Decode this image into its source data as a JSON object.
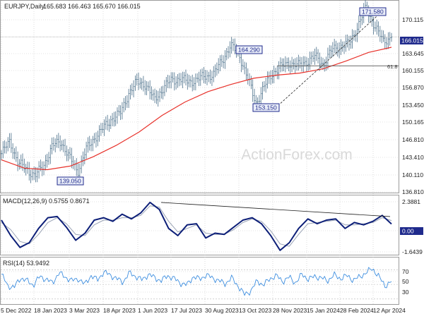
{
  "header": {
    "symbol_label": "EURJPY,Daily",
    "ohlc_text": "165.683 166.463 165.670 166.015"
  },
  "watermark": "ActionForex.com",
  "price_panel": {
    "y_ticks": [
      "170.115",
      "166.015",
      "163.645",
      "160.155",
      "156.870",
      "153.450",
      "150.165",
      "146.810",
      "143.410",
      "140.110",
      "136.810"
    ],
    "current_price": "166.015",
    "fib_label": "61.8",
    "annotations": [
      "171.580",
      "164.290",
      "153.150",
      "139.050"
    ]
  },
  "macd_panel": {
    "title": "MACD(12,26,9) 0.5755 0.8671",
    "y_ticks": [
      "2.3881",
      "0.00",
      "-1.6439"
    ],
    "current_value_label": "0.00"
  },
  "rsi_panel": {
    "title": "RSI(14) 53.9492",
    "y_ticks": [
      "70",
      "50",
      "30"
    ]
  },
  "x_axis_labels": [
    "5 Dec 2022",
    "18 Jan 2023",
    "3 Mar 2023",
    "18 Apr 2023",
    "1 Jun 2023",
    "17 Jul 2023",
    "30 Aug 2023",
    "13 Oct 2023",
    "28 Nov 2023",
    "15 Jan 2024",
    "28 Feb 2024",
    "12 Apr 2024"
  ],
  "colors": {
    "background": "#ffffff",
    "candle": "#4a6f8a",
    "moving_average": "#e8312a",
    "macd_line": "#0d1f78",
    "signal_line": "#9aa3b5",
    "rsi_line": "#3f8fe0",
    "grid": "#c8c8c8",
    "label_box_border": "#1f2a8c",
    "label_box_bg": "#e9edf8",
    "price_box": "#1f2a8c"
  },
  "chart_data": [
    {
      "type": "candlestick",
      "title": "EURJPY,Daily",
      "x_dates": [
        "5 Dec 2022",
        "18 Jan 2023",
        "3 Mar 2023",
        "18 Apr 2023",
        "1 Jun 2023",
        "17 Jul 2023",
        "30 Aug 2023",
        "13 Oct 2023",
        "28 Nov 2023",
        "15 Jan 2024",
        "28 Feb 2024",
        "12 Apr 2024"
      ],
      "close_path": [
        [
          "5 Dec 2022",
          143.4
        ],
        [
          "Dec 2022",
          145.8
        ],
        [
          "Dec 2022",
          141.5
        ],
        [
          "Jan 2023",
          140.4
        ],
        [
          "Jan 2023",
          139.05
        ],
        [
          "Feb 2023",
          141.3
        ],
        [
          "Feb 2023",
          144.8
        ],
        [
          "Mar 2023",
          145.9
        ],
        [
          "Mar 2023",
          142.6
        ],
        [
          "Mar 2023",
          140.0
        ],
        [
          "Apr 2023",
          144.2
        ],
        [
          "Apr 2023",
          146.5
        ],
        [
          "May 2023",
          148.3
        ],
        [
          "May 2023",
          150.2
        ],
        [
          "May 2023",
          151.1
        ],
        [
          "Jun 2023",
          155.1
        ],
        [
          "Jun 2023",
          157.3
        ],
        [
          "Jul 2023",
          156.8
        ],
        [
          "Jul 2023",
          153.8
        ],
        [
          "Aug 2023",
          155.9
        ],
        [
          "Aug 2023",
          157.6
        ],
        [
          "Sep 2023",
          157.9
        ],
        [
          "Sep 2023",
          157.3
        ],
        [
          "Oct 2023",
          157.7
        ],
        [
          "Oct 2023",
          158.4
        ],
        [
          "Oct 2023",
          158.7
        ],
        [
          "Nov 2023",
          161.4
        ],
        [
          "Nov 2023",
          164.29
        ],
        [
          "Nov 2023",
          162.8
        ],
        [
          "Dec 2023",
          158.2
        ],
        [
          "Dec 2023",
          153.15
        ],
        [
          "Dec 2023",
          156.4
        ],
        [
          "Jan 2024",
          159.1
        ],
        [
          "Jan 2024",
          160.2
        ],
        [
          "Jan 2024",
          161.0
        ],
        [
          "Feb 2024",
          160.4
        ],
        [
          "Feb 2024",
          161.3
        ],
        [
          "Mar 2024",
          162.2
        ],
        [
          "Mar 2024",
          160.7
        ],
        [
          "Mar 2024",
          163.6
        ],
        [
          "Apr 2024",
          164.2
        ],
        [
          "Apr 2024",
          164.6
        ],
        [
          "Apr 2024",
          168.0
        ],
        [
          "Apr 2024",
          171.58
        ],
        [
          "Apr 2024",
          168.2
        ],
        [
          "Apr 2024",
          165.1
        ],
        [
          "Apr 2024",
          166.015
        ]
      ],
      "moving_average": [
        [
          "5 Dec 2022",
          142.2
        ],
        [
          "Jan 2023",
          140.6
        ],
        [
          "Feb 2023",
          140.3
        ],
        [
          "Mar 2023",
          141.0
        ],
        [
          "Apr 2023",
          142.8
        ],
        [
          "May 2023",
          145.0
        ],
        [
          "Jun 2023",
          147.6
        ],
        [
          "Jul 2023",
          150.8
        ],
        [
          "Aug 2023",
          153.4
        ],
        [
          "Sep 2023",
          155.4
        ],
        [
          "Oct 2023",
          156.8
        ],
        [
          "Nov 2023",
          158.0
        ],
        [
          "Dec 2023",
          158.6
        ],
        [
          "Jan 2024",
          159.0
        ],
        [
          "Feb 2024",
          159.8
        ],
        [
          "Mar 2024",
          161.3
        ],
        [
          "Apr 2024",
          163.0
        ],
        [
          "Apr 2024",
          164.0
        ]
      ],
      "y_range": [
        136.0,
        172.6
      ],
      "levels": {
        "retracement_61_8": 160.4,
        "last": 166.015
      },
      "annotations": [
        {
          "text": "171.580",
          "value": 171.58
        },
        {
          "text": "164.290",
          "value": 164.29
        },
        {
          "text": "153.150",
          "value": 153.15
        },
        {
          "text": "139.050",
          "value": 139.05
        }
      ],
      "trendline": {
        "from": [
          "Nov 2023",
          153.15
        ],
        "to": [
          "Apr 2024",
          171.58
        ],
        "style": "dashed"
      }
    },
    {
      "type": "line",
      "title": "MACD(12,26,9) 0.5755 0.8671",
      "values_macd": [
        0.9,
        -0.4,
        -1.4,
        -1.0,
        0.2,
        1.1,
        1.2,
        0.3,
        -0.8,
        -0.2,
        0.9,
        1.1,
        0.8,
        1.4,
        1.0,
        1.5,
        2.3881,
        1.8,
        0.2,
        -0.4,
        0.5,
        0.6,
        -0.6,
        -0.2,
        -0.3,
        0.3,
        0.9,
        1.1,
        0.6,
        -0.4,
        -1.6439,
        -1.0,
        0.2,
        1.0,
        0.6,
        0.9,
        1.0,
        0.2,
        0.7,
        0.5,
        0.8,
        1.3,
        0.5755
      ],
      "values_signal": [
        0.7,
        0.1,
        -0.9,
        -1.1,
        -0.3,
        0.7,
        1.1,
        0.6,
        -0.3,
        -0.4,
        0.5,
        0.9,
        0.9,
        1.1,
        1.1,
        1.3,
        2.1,
        2.0,
        0.8,
        -0.1,
        0.2,
        0.5,
        -0.2,
        -0.3,
        -0.3,
        0.1,
        0.7,
        1.0,
        0.8,
        0.0,
        -1.1,
        -1.3,
        -0.3,
        0.6,
        0.7,
        0.8,
        0.9,
        0.5,
        0.5,
        0.6,
        0.7,
        1.1,
        0.8671
      ],
      "y_range": [
        -1.95,
        2.8
      ],
      "trendline": {
        "from_value": 2.3881,
        "to_value": 1.2,
        "style": "solid"
      }
    },
    {
      "type": "line",
      "title": "RSI(14) 53.9492",
      "values": [
        64,
        48,
        46,
        59,
        55,
        49,
        61,
        57,
        52,
        66,
        60,
        55,
        58,
        50,
        62,
        56,
        67,
        63,
        58,
        53,
        66,
        61,
        56,
        64,
        59,
        55,
        62,
        58,
        52,
        49,
        61,
        57,
        63,
        59,
        55,
        51,
        59,
        48,
        36,
        41,
        55,
        49,
        58,
        62,
        54,
        60,
        52,
        64,
        57,
        61,
        59,
        55,
        63,
        58,
        62,
        56,
        60,
        66,
        72,
        61,
        48,
        53.9492
      ],
      "y_range": [
        24,
        84
      ],
      "levels": [
        70,
        50,
        30
      ]
    }
  ]
}
